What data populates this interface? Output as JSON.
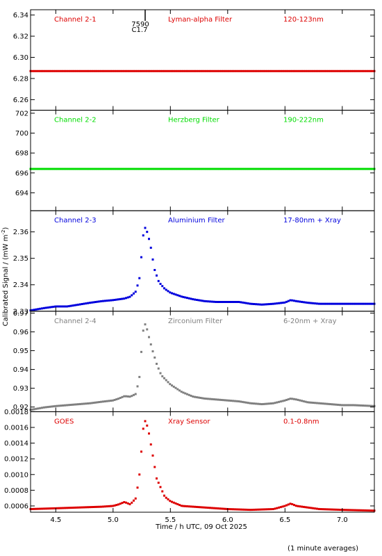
{
  "figure": {
    "xlabel": "Time / h UTC, 09 Oct 2025",
    "ylabel": "Calibrated Signal / (mW m",
    "ylabel_sup": "-2",
    "ylabel_close": ")",
    "footer": "(1 minute averages)",
    "marker_top": "7590",
    "marker_bottom": "C1.7"
  },
  "chart_data": [
    {
      "type": "scatter",
      "channel": "Channel 2-1",
      "filter": "Lyman-alpha Filter",
      "band": "120-123nm",
      "color": "#dd0000",
      "ylim": [
        6.25,
        6.345
      ],
      "yticks": [
        6.26,
        6.28,
        6.3,
        6.32,
        6.34
      ],
      "ytick_labels": [
        "6.26",
        "6.28",
        "6.30",
        "6.32",
        "6.34"
      ],
      "series_points": [
        [
          4.28,
          6.287
        ],
        [
          7.28,
          6.287
        ]
      ]
    },
    {
      "type": "scatter",
      "channel": "Channel 2-2",
      "filter": "Herzberg Filter",
      "band": "190-222nm",
      "color": "#00dd00",
      "ylim": [
        692.2,
        702.3
      ],
      "yticks": [
        694,
        696,
        698,
        700,
        702
      ],
      "ytick_labels": [
        "694",
        "696",
        "698",
        "700",
        "702"
      ],
      "series_points": [
        [
          4.28,
          696.4
        ],
        [
          7.28,
          696.4
        ]
      ]
    },
    {
      "type": "scatter",
      "channel": "Channel 2-3",
      "filter": "Aluminium Filter",
      "band": "17-80nm + Xray",
      "color": "#0000dd",
      "ylim": [
        2.33,
        2.368
      ],
      "yticks": [
        2.33,
        2.34,
        2.35,
        2.36
      ],
      "ytick_labels": [
        "2.33",
        "2.34",
        "2.35",
        "2.36"
      ],
      "series_points": [
        [
          4.28,
          2.3303
        ],
        [
          4.4,
          2.3312
        ],
        [
          4.5,
          2.3318
        ],
        [
          4.6,
          2.3318
        ],
        [
          4.7,
          2.3325
        ],
        [
          4.8,
          2.3332
        ],
        [
          4.9,
          2.3338
        ],
        [
          5.0,
          2.3342
        ],
        [
          5.1,
          2.3348
        ],
        [
          5.15,
          2.3355
        ],
        [
          5.2,
          2.3375
        ],
        [
          5.23,
          2.3425
        ],
        [
          5.25,
          2.352
        ],
        [
          5.27,
          2.362
        ],
        [
          5.29,
          2.361
        ],
        [
          5.31,
          2.358
        ],
        [
          5.33,
          2.354
        ],
        [
          5.36,
          2.346
        ],
        [
          5.4,
          2.341
        ],
        [
          5.45,
          2.3385
        ],
        [
          5.5,
          2.337
        ],
        [
          5.6,
          2.3355
        ],
        [
          5.7,
          2.3345
        ],
        [
          5.8,
          2.3338
        ],
        [
          5.9,
          2.3335
        ],
        [
          6.0,
          2.3335
        ],
        [
          6.1,
          2.3335
        ],
        [
          6.2,
          2.3328
        ],
        [
          6.3,
          2.3325
        ],
        [
          6.4,
          2.3328
        ],
        [
          6.5,
          2.3333
        ],
        [
          6.55,
          2.3342
        ],
        [
          6.6,
          2.3338
        ],
        [
          6.7,
          2.3332
        ],
        [
          6.8,
          2.3328
        ],
        [
          6.9,
          2.3328
        ],
        [
          7.0,
          2.3328
        ],
        [
          7.1,
          2.3328
        ],
        [
          7.28,
          2.3328
        ]
      ]
    },
    {
      "type": "scatter",
      "channel": "Channel 2-4",
      "filter": "Zirconium Filter",
      "band": "6-20nm + Xray",
      "color": "#808080",
      "ylim": [
        0.9175,
        0.971
      ],
      "yticks": [
        0.92,
        0.93,
        0.94,
        0.95,
        0.96,
        0.97
      ],
      "ytick_labels": [
        "0.92",
        "0.93",
        "0.94",
        "0.95",
        "0.96",
        "0.97"
      ],
      "series_points": [
        [
          4.28,
          0.9185
        ],
        [
          4.4,
          0.9198
        ],
        [
          4.5,
          0.9205
        ],
        [
          4.6,
          0.921
        ],
        [
          4.7,
          0.9215
        ],
        [
          4.8,
          0.922
        ],
        [
          4.9,
          0.9228
        ],
        [
          5.0,
          0.9235
        ],
        [
          5.05,
          0.9245
        ],
        [
          5.1,
          0.9258
        ],
        [
          5.15,
          0.9255
        ],
        [
          5.2,
          0.927
        ],
        [
          5.23,
          0.936
        ],
        [
          5.25,
          0.952
        ],
        [
          5.27,
          0.965
        ],
        [
          5.29,
          0.963
        ],
        [
          5.31,
          0.958
        ],
        [
          5.34,
          0.951
        ],
        [
          5.38,
          0.943
        ],
        [
          5.42,
          0.937
        ],
        [
          5.5,
          0.932
        ],
        [
          5.6,
          0.928
        ],
        [
          5.7,
          0.9255
        ],
        [
          5.8,
          0.9245
        ],
        [
          5.9,
          0.924
        ],
        [
          6.0,
          0.9235
        ],
        [
          6.1,
          0.923
        ],
        [
          6.2,
          0.922
        ],
        [
          6.3,
          0.9215
        ],
        [
          6.4,
          0.922
        ],
        [
          6.5,
          0.9235
        ],
        [
          6.55,
          0.9245
        ],
        [
          6.6,
          0.924
        ],
        [
          6.7,
          0.9225
        ],
        [
          6.8,
          0.922
        ],
        [
          6.9,
          0.9215
        ],
        [
          7.0,
          0.921
        ],
        [
          7.1,
          0.921
        ],
        [
          7.28,
          0.9205
        ]
      ]
    },
    {
      "type": "scatter",
      "channel": "GOES",
      "filter": "Xray Sensor",
      "band": "0.1-0.8nm",
      "color": "#dd0000",
      "ylim": [
        0.00052,
        0.0018
      ],
      "yticks": [
        0.0006,
        0.0008,
        0.001,
        0.0012,
        0.0014,
        0.0016,
        0.0018
      ],
      "ytick_labels": [
        "0.0006",
        "0.0008",
        "0.0010",
        "0.0012",
        "0.0014",
        "0.0016",
        "0.0018"
      ],
      "series_points": [
        [
          4.28,
          0.00056
        ],
        [
          4.5,
          0.00057
        ],
        [
          4.7,
          0.00058
        ],
        [
          4.9,
          0.00059
        ],
        [
          5.0,
          0.0006
        ],
        [
          5.05,
          0.00062
        ],
        [
          5.1,
          0.00065
        ],
        [
          5.15,
          0.00062
        ],
        [
          5.2,
          0.0007
        ],
        [
          5.23,
          0.001
        ],
        [
          5.25,
          0.00135
        ],
        [
          5.27,
          0.0017
        ],
        [
          5.29,
          0.00166
        ],
        [
          5.31,
          0.00155
        ],
        [
          5.34,
          0.0013
        ],
        [
          5.38,
          0.00095
        ],
        [
          5.45,
          0.00072
        ],
        [
          5.5,
          0.00066
        ],
        [
          5.6,
          0.0006
        ],
        [
          5.8,
          0.00058
        ],
        [
          6.0,
          0.00056
        ],
        [
          6.2,
          0.00055
        ],
        [
          6.4,
          0.00056
        ],
        [
          6.5,
          0.0006
        ],
        [
          6.55,
          0.00063
        ],
        [
          6.6,
          0.0006
        ],
        [
          6.8,
          0.00056
        ],
        [
          7.0,
          0.00055
        ],
        [
          7.28,
          0.00054
        ]
      ]
    }
  ],
  "xaxis": {
    "xlim": [
      4.28,
      7.28
    ],
    "xticks": [
      4.5,
      5.0,
      5.5,
      6.0,
      6.5,
      7.0
    ],
    "xtick_labels": [
      "4.5",
      "5.0",
      "5.5",
      "6.0",
      "6.5",
      "7.0"
    ],
    "marker_x": 5.28
  }
}
